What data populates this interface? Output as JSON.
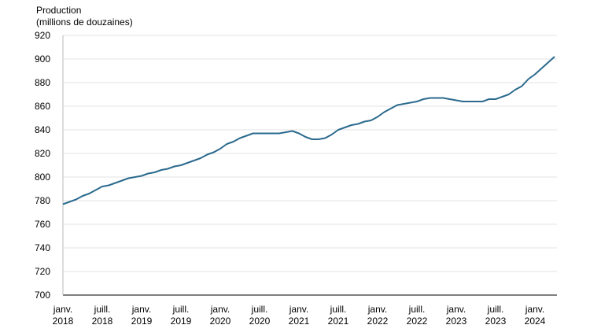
{
  "chart_data": {
    "type": "line",
    "y_label": [
      "Production",
      "(millions de douzaines)"
    ],
    "categories": [
      "janv. 2018",
      null,
      null,
      null,
      null,
      null,
      "juill. 2018",
      null,
      null,
      null,
      null,
      null,
      "janv. 2019",
      null,
      null,
      null,
      null,
      null,
      "juill. 2019",
      null,
      null,
      null,
      null,
      null,
      "janv. 2020",
      null,
      null,
      null,
      null,
      null,
      "juill. 2020",
      null,
      null,
      null,
      null,
      null,
      "janv. 2021",
      null,
      null,
      null,
      null,
      null,
      "juill. 2021",
      null,
      null,
      null,
      null,
      null,
      "janv. 2022",
      null,
      null,
      null,
      null,
      null,
      "juill. 2022",
      null,
      null,
      null,
      null,
      null,
      "janv. 2023",
      null,
      null,
      null,
      null,
      null,
      "juill. 2023",
      null,
      null,
      null,
      null,
      null,
      "janv. 2024",
      null,
      null,
      null
    ],
    "series": [
      {
        "color": "#2b6a8e",
        "values": [
          777,
          779,
          781,
          784,
          786,
          789,
          792,
          793,
          795,
          797,
          799,
          800,
          801,
          803,
          804,
          806,
          807,
          809,
          810,
          812,
          814,
          816,
          819,
          821,
          824,
          828,
          830,
          833,
          835,
          837,
          837,
          837,
          837,
          837,
          838,
          839,
          837,
          834,
          832,
          832,
          833,
          836,
          840,
          842,
          844,
          845,
          847,
          848,
          851,
          855,
          858,
          861,
          862,
          863,
          864,
          866,
          867,
          867,
          867,
          866,
          865,
          864,
          864,
          864,
          864,
          866,
          866,
          868,
          870,
          874,
          877,
          883,
          887,
          892,
          897,
          902
        ]
      }
    ],
    "ylim": [
      700,
      920
    ],
    "yticks": [
      700,
      720,
      740,
      760,
      780,
      800,
      820,
      840,
      860,
      880,
      900,
      920
    ],
    "grid": true
  }
}
